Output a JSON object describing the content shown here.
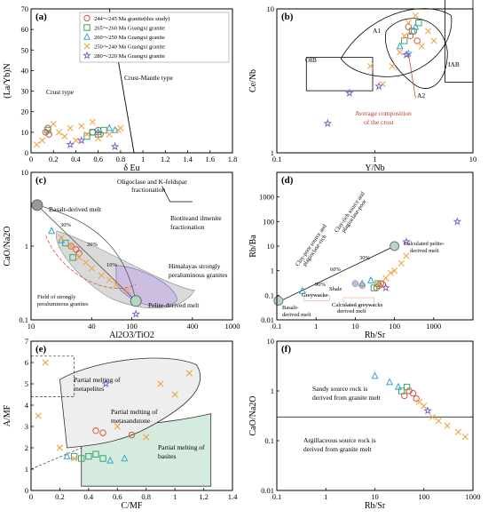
{
  "colors": {
    "red": "#d9533b",
    "green": "#3aa66b",
    "cyan": "#34a9c8",
    "orange": "#f0a64a",
    "purple": "#7a5cc0",
    "shade": "#d9d9d9",
    "purple_shade": "#c8b7e2",
    "green_shade": "#d6ebe0"
  },
  "legend": [
    {
      "marker": "circle",
      "label": "244～245 Ma granite(this study)",
      "color": "#d9533b"
    },
    {
      "marker": "square",
      "label": "265～260 Ma Guangxi granite",
      "color": "#3aa66b"
    },
    {
      "marker": "triangle",
      "label": "260～250 Ma Guangxi granite",
      "color": "#34a9c8"
    },
    {
      "marker": "cross",
      "label": "250～240 Ma Guangxi granite",
      "color": "#f0a64a"
    },
    {
      "marker": "star",
      "label": "280～220 Ma Guangxi granite",
      "color": "#7a5cc0"
    }
  ],
  "chart_data": [
    {
      "id": "a",
      "panel_label": "(a)",
      "type": "scatter",
      "xlabel": "δ Eu",
      "ylabel": "(La/Yb)N",
      "xlim": [
        0,
        1.8
      ],
      "ylim": [
        0,
        70
      ],
      "xticks": [
        "0",
        "0.2",
        "0.4",
        "0.6",
        "0.8",
        "1",
        "1.2",
        "1.4",
        "1.6",
        "1.8"
      ],
      "yticks": [
        "0",
        "10",
        "20",
        "30",
        "40",
        "50",
        "60",
        "70"
      ],
      "annotations": [
        "Crust type",
        "Crust-Mantle type"
      ],
      "series": [
        {
          "name": "244～245 Ma granite(this study)",
          "marker": "circle",
          "x": [
            0.13,
            0.15,
            0.16,
            0.55,
            0.6,
            0.62
          ],
          "y": [
            10,
            12,
            9,
            10,
            11,
            9
          ]
        },
        {
          "name": "265～260 Ma Guangxi granite",
          "marker": "square",
          "x": [
            0.15,
            0.5,
            0.55,
            0.6,
            0.65
          ],
          "y": [
            11,
            8,
            10,
            9,
            11
          ]
        },
        {
          "name": "260～250 Ma Guangxi granite",
          "marker": "triangle",
          "x": [
            0.6,
            0.7,
            0.75
          ],
          "y": [
            10,
            12,
            11
          ]
        },
        {
          "name": "250～240 Ma Guangxi granite",
          "marker": "cross",
          "x": [
            0.05,
            0.1,
            0.2,
            0.25,
            0.3,
            0.35,
            0.4,
            0.45,
            0.5,
            0.55,
            0.6,
            0.7,
            0.78,
            0.8
          ],
          "y": [
            4,
            6,
            14,
            10,
            8,
            12,
            6,
            13,
            9,
            15,
            7,
            9,
            11,
            12
          ]
        },
        {
          "name": "280～220 Ma Guangxi granite",
          "marker": "star",
          "x": [
            0.35,
            0.45,
            0.75
          ],
          "y": [
            4,
            6,
            3
          ]
        }
      ]
    },
    {
      "id": "b",
      "panel_label": "(b)",
      "type": "scatter",
      "xlabel": "Y/Nb",
      "ylabel": "Ce/Nb",
      "xlim": [
        0.1,
        10
      ],
      "ylim": [
        1,
        10
      ],
      "xscale": "log",
      "yscale": "log",
      "xticks": [
        "0.1",
        "1",
        "10"
      ],
      "yticks": [
        "1",
        "10"
      ],
      "annotations": [
        "OIB",
        "A1",
        "A2",
        "IAB",
        "Average composition",
        "of the crust"
      ],
      "series": [
        {
          "name": "244～245 Ma granite(this study)",
          "marker": "circle",
          "x": [
            2.3,
            2.5,
            2.7,
            2.2
          ],
          "y": [
            6.5,
            7,
            6,
            7.5
          ]
        },
        {
          "name": "265～260 Ma Guangxi granite",
          "marker": "square",
          "x": [
            2.0,
            2.4,
            2.8
          ],
          "y": [
            6,
            7,
            8
          ]
        },
        {
          "name": "260～250 Ma Guangxi granite",
          "marker": "triangle",
          "x": [
            1.8,
            2.6
          ],
          "y": [
            5.5,
            7.5
          ]
        },
        {
          "name": "250～240 Ma Guangxi granite",
          "marker": "cross",
          "x": [
            1.5,
            1.8,
            2.0,
            2.2,
            2.6,
            3.0,
            3.5,
            4.0,
            1.2,
            0.9
          ],
          "y": [
            4.0,
            5.0,
            6.5,
            8.0,
            9.0,
            5.5,
            7.0,
            6.0,
            3.0,
            4.0
          ]
        },
        {
          "name": "280～220 Ma Guangxi granite",
          "marker": "star",
          "x": [
            0.33,
            0.55,
            1.1,
            2.1
          ],
          "y": [
            1.6,
            2.6,
            2.9,
            4.8
          ]
        }
      ]
    },
    {
      "id": "c",
      "panel_label": "(c)",
      "type": "scatter",
      "xlabel": "Al2O3/TiO2",
      "ylabel": "CaO/Na2O",
      "xlim": [
        10,
        1000
      ],
      "ylim": [
        0.1,
        10
      ],
      "xscale": "log",
      "yscale": "log",
      "xticks": [
        "10",
        "40",
        "100",
        "400",
        "1000"
      ],
      "yticks": [
        "0.1",
        "1",
        "10"
      ],
      "annotations": [
        "Basalt-derived melt",
        "Oligoclase and K-feldspar",
        "fractionation",
        "Biotiteand ilmenite",
        "fractionation",
        "Himalayas strongly",
        "peraluminous granites",
        "Pelite-derived melt",
        "Field of strongly",
        "peraluminous granites",
        "30%",
        "20%",
        "10%"
      ],
      "series": [
        {
          "name": "244～245 Ma granite(this study)",
          "marker": "circle",
          "x": [
            25,
            28,
            30
          ],
          "y": [
            1.0,
            0.9,
            0.8
          ]
        },
        {
          "name": "265～260 Ma Guangxi granite",
          "marker": "square",
          "x": [
            22,
            26
          ],
          "y": [
            1.1,
            0.7
          ]
        },
        {
          "name": "260～250 Ma Guangxi granite",
          "marker": "triangle",
          "x": [
            16,
            20
          ],
          "y": [
            1.6,
            1.2
          ]
        },
        {
          "name": "250～240 Ma Guangxi granite",
          "marker": "cross",
          "x": [
            20,
            25,
            30,
            35,
            40,
            50,
            60,
            70,
            90
          ],
          "y": [
            1.3,
            1.0,
            0.7,
            0.6,
            0.5,
            0.4,
            0.35,
            0.3,
            0.25
          ]
        },
        {
          "name": "280～220 Ma Guangxi granite",
          "marker": "star",
          "x": [
            110
          ],
          "y": [
            0.12
          ]
        }
      ]
    },
    {
      "id": "d",
      "panel_label": "(d)",
      "type": "scatter",
      "xlabel": "Rb/Sr",
      "ylabel": "Rb/Ba",
      "xlim": [
        0.1,
        10000
      ],
      "ylim": [
        0.01,
        10000
      ],
      "xscale": "log",
      "yscale": "log",
      "xticks": [
        "0.1",
        "1",
        "10",
        "100",
        "1000"
      ],
      "yticks": [
        "0.01",
        "0.1",
        "1",
        "10",
        "100",
        "1000"
      ],
      "annotations": [
        "Clay-poor source and",
        "plagioclase-rich",
        "Clay-rich source and",
        "plagioclase-poor",
        "Calculated pelite-",
        "derived melt",
        "Basalt-",
        "derived melt",
        "Shale",
        "Greywacke",
        "Calculated greywacke",
        "derived melt",
        "90%",
        "60%",
        "30%"
      ],
      "series": [
        {
          "name": "244～245 Ma granite(this study)",
          "marker": "circle",
          "x": [
            35,
            40,
            45,
            50
          ],
          "y": [
            0.2,
            0.25,
            0.3,
            0.28
          ]
        },
        {
          "name": "265～260 Ma Guangxi granite",
          "marker": "square",
          "x": [
            30,
            38
          ],
          "y": [
            0.2,
            0.3
          ]
        },
        {
          "name": "260～250 Ma Guangxi granite",
          "marker": "triangle",
          "x": [
            0.45,
            15,
            25
          ],
          "y": [
            0.15,
            0.3,
            0.4
          ]
        },
        {
          "name": "250～240 Ma Guangxi granite",
          "marker": "cross",
          "x": [
            40,
            60,
            80,
            100,
            150,
            200
          ],
          "y": [
            0.3,
            0.5,
            0.8,
            1.0,
            2.0,
            4.0
          ]
        },
        {
          "name": "280～220 Ma Guangxi granite",
          "marker": "star",
          "x": [
            60,
            200,
            4000
          ],
          "y": [
            0.2,
            15,
            100
          ]
        }
      ]
    },
    {
      "id": "e",
      "panel_label": "(e)",
      "type": "scatter",
      "xlabel": "C/MF",
      "ylabel": "A/MF",
      "xlim": [
        0,
        1.4
      ],
      "ylim": [
        0,
        7
      ],
      "xticks": [
        "0",
        "0.2",
        "0.4",
        "0.6",
        "0.8",
        "1",
        "1.2",
        "1.4"
      ],
      "yticks": [
        "0",
        "1",
        "2",
        "3",
        "4",
        "5",
        "6",
        "7"
      ],
      "annotations": [
        "Partial melting of",
        "metapelites",
        "Partial melting of",
        "metasandstone",
        "Partial melting of",
        "basites"
      ],
      "series": [
        {
          "name": "244～245 Ma granite(this study)",
          "marker": "circle",
          "x": [
            0.45,
            0.5,
            0.7
          ],
          "y": [
            2.8,
            2.7,
            2.6
          ]
        },
        {
          "name": "265～260 Ma Guangxi granite",
          "marker": "square",
          "x": [
            0.3,
            0.35,
            0.4,
            0.45,
            0.5
          ],
          "y": [
            1.6,
            1.5,
            1.6,
            1.7,
            1.5
          ]
        },
        {
          "name": "260～250 Ma Guangxi granite",
          "marker": "triangle",
          "x": [
            0.25,
            0.55,
            0.65
          ],
          "y": [
            1.6,
            1.4,
            1.5
          ]
        },
        {
          "name": "250～240 Ma Guangxi granite",
          "marker": "cross",
          "x": [
            0.05,
            0.1,
            0.2,
            0.3,
            0.6,
            0.8,
            0.9,
            1.0,
            1.1
          ],
          "y": [
            3.5,
            6.0,
            2.0,
            1.5,
            3.0,
            2.5,
            5.0,
            4.5,
            5.5
          ]
        },
        {
          "name": "280～220 Ma Guangxi granite",
          "marker": "star",
          "x": [
            0.52
          ],
          "y": [
            5.0
          ]
        }
      ]
    },
    {
      "id": "f",
      "panel_label": "(f)",
      "type": "scatter",
      "xlabel": "Rb/Sr",
      "ylabel": "CaO/Na2O",
      "xlim": [
        0.1,
        1000
      ],
      "ylim": [
        0.01,
        10
      ],
      "xscale": "log",
      "yscale": "log",
      "xticks": [
        "0.1",
        "1",
        "10",
        "100",
        "1000"
      ],
      "yticks": [
        "0.01",
        "0.1",
        "1",
        "10"
      ],
      "annotations": [
        "Sandy source rock is",
        "derived from granite melt",
        "Argillaceous source rock is",
        "derived from granite melt"
      ],
      "series": [
        {
          "name": "244～245 Ma granite(this study)",
          "marker": "circle",
          "x": [
            40,
            50,
            60,
            70
          ],
          "y": [
            0.8,
            1.0,
            0.9,
            0.7
          ]
        },
        {
          "name": "265～260 Ma Guangxi granite",
          "marker": "square",
          "x": [
            35,
            45
          ],
          "y": [
            1.0,
            1.2
          ]
        },
        {
          "name": "260～250 Ma Guangxi granite",
          "marker": "triangle",
          "x": [
            10,
            20,
            30
          ],
          "y": [
            2.0,
            1.5,
            1.2
          ]
        },
        {
          "name": "250～240 Ma Guangxi granite",
          "marker": "cross",
          "x": [
            80,
            100,
            150,
            200,
            300,
            500,
            700
          ],
          "y": [
            0.6,
            0.5,
            0.3,
            0.25,
            0.2,
            0.15,
            0.12
          ]
        },
        {
          "name": "280～220 Ma Guangxi granite",
          "marker": "star",
          "x": [
            120
          ],
          "y": [
            0.4
          ]
        }
      ]
    }
  ]
}
